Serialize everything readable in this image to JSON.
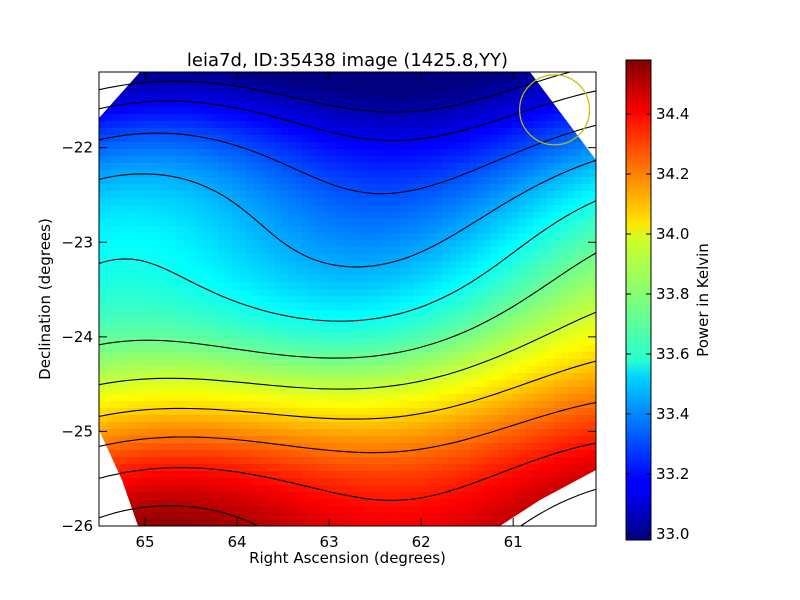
{
  "chart_data": {
    "type": "heatmap",
    "title": "leia7d, ID:35438 image (1425.8,YY)",
    "xlabel": "Right Ascension (degrees)",
    "ylabel": "Declination (degrees)",
    "xlim": [
      65.5,
      60.1
    ],
    "ylim": [
      -26,
      -21.2
    ],
    "x_reversed": true,
    "xticks": [
      65,
      64,
      63,
      62,
      61
    ],
    "xtick_labels": [
      "65",
      "64",
      "63",
      "62",
      "61"
    ],
    "yticks": [
      -22,
      -23,
      -24,
      -25,
      -26
    ],
    "ytick_labels": [
      "−22",
      "−23",
      "−24",
      "−25",
      "−26"
    ],
    "colorbar": {
      "label": "Power in Kelvin",
      "range": [
        32.98,
        34.58
      ],
      "ticks": [
        33.0,
        33.2,
        33.4,
        33.6,
        33.8,
        34.0,
        34.2,
        34.4
      ],
      "tick_labels": [
        "33.0",
        "33.2",
        "33.4",
        "33.6",
        "33.8",
        "34.0",
        "34.2",
        "34.4"
      ],
      "colormap": "jet"
    },
    "contour_levels": [
      33.05,
      33.15,
      33.3,
      33.45,
      33.6,
      33.75,
      33.9,
      34.05,
      34.2,
      34.35,
      34.5
    ],
    "contour_count": 11,
    "field_description": "power increases from upper-right (~33.0 K) to lower-left (~34.55 K)",
    "beam_marker": {
      "shape": "circle",
      "color": "#bfbf00",
      "ra": 60.55,
      "dec": -21.6,
      "radius_deg": 0.38
    },
    "grid": false,
    "legend": "colorbar-right"
  }
}
